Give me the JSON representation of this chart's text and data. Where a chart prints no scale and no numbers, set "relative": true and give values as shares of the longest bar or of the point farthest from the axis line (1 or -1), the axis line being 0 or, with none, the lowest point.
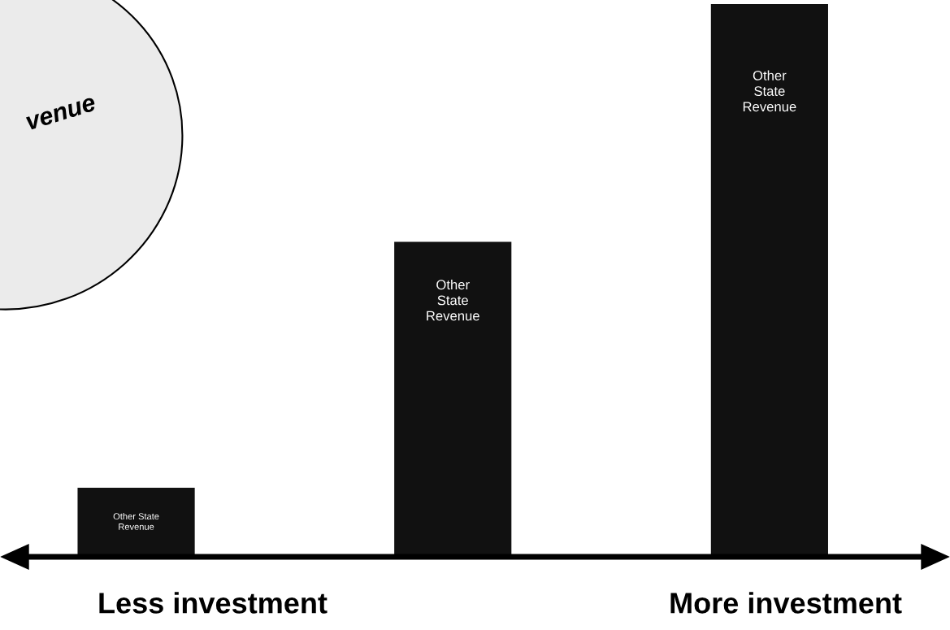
{
  "chart_data": {
    "type": "bar",
    "relative": true,
    "categories": [
      null,
      null,
      null
    ],
    "series": [
      {
        "name": "Other State Revenue",
        "color": "#111111",
        "values": [
          0.125,
          0.57,
          1.0
        ]
      }
    ],
    "annotations": [
      "Less investment",
      "More investment",
      "venue"
    ]
  }
}
